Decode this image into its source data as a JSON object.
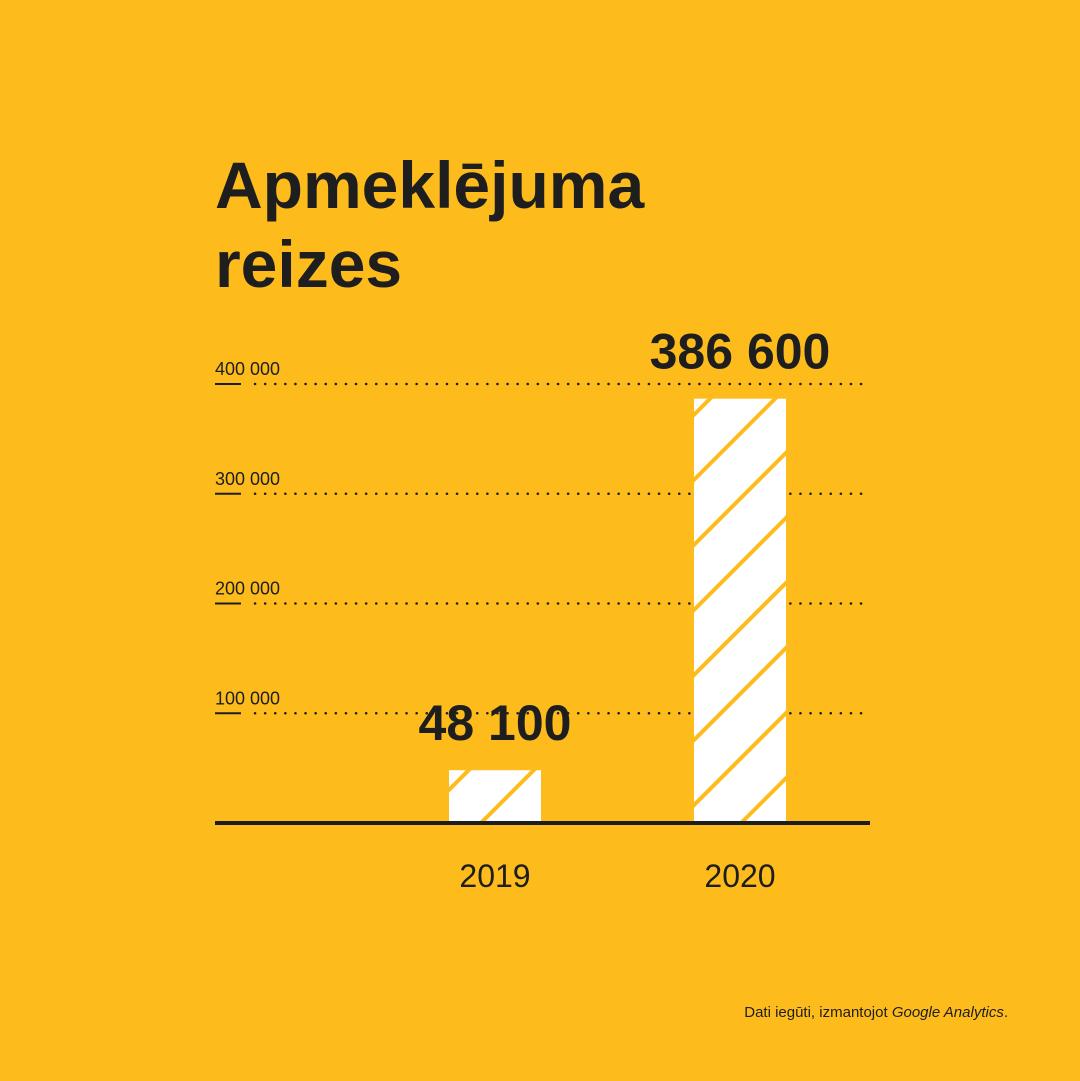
{
  "colors": {
    "background": "#FDBC1C",
    "text": "#1e1e1e",
    "bar_fill": "#FFFFFF",
    "bar_stripe": "#FDBC1C"
  },
  "source_note": {
    "prefix": "Dati iegūti, izmantojot ",
    "italic": "Google Analytics",
    "suffix": "."
  },
  "chart_data": {
    "type": "bar",
    "title_lines": [
      "Apmeklējuma",
      "reizes"
    ],
    "categories": [
      "2019",
      "2020"
    ],
    "values": [
      48100,
      386600
    ],
    "data_labels": [
      "48 100",
      "386 600"
    ],
    "y_ticks": [
      100000,
      200000,
      300000,
      400000
    ],
    "y_tick_labels": [
      "100 000",
      "200 000",
      "300 000",
      "400 000"
    ],
    "ylim": [
      0,
      400000
    ],
    "grid": "dotted horizontal",
    "bar_pattern": "diagonal stripes",
    "xlabel": "",
    "ylabel": ""
  }
}
